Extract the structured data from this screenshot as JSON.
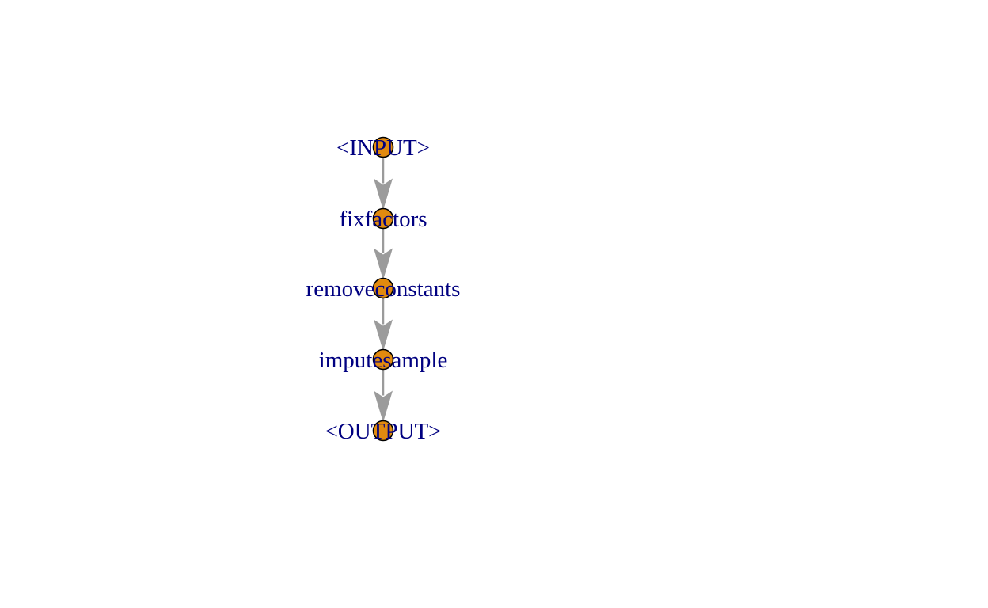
{
  "diagram": {
    "type": "pipeline-graph",
    "nodes": [
      {
        "id": "input",
        "label": "<INPUT>"
      },
      {
        "id": "fixfactors",
        "label": "fixfactors"
      },
      {
        "id": "removeconstants",
        "label": "removeconstants"
      },
      {
        "id": "imputesample",
        "label": "imputesample"
      },
      {
        "id": "output",
        "label": "<OUTPUT>"
      }
    ],
    "edges": [
      {
        "from": "input",
        "to": "fixfactors"
      },
      {
        "from": "fixfactors",
        "to": "removeconstants"
      },
      {
        "from": "removeconstants",
        "to": "imputesample"
      },
      {
        "from": "imputesample",
        "to": "output"
      }
    ]
  },
  "colors": {
    "node_fill": "#E18A0F",
    "node_border": "#000000",
    "label_text": "#000080",
    "edge": "#9B9B9B"
  }
}
